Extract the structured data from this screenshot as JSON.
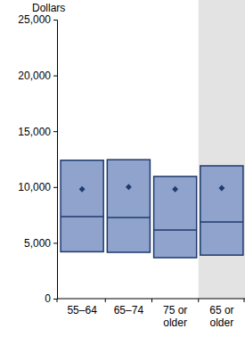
{
  "chart_data": {
    "type": "box",
    "y_label": "Dollars",
    "categories": [
      "55–64",
      "65–74",
      "75 or older",
      "65 or older"
    ],
    "q1": [
      4200,
      4150,
      3670,
      3900
    ],
    "median": [
      7350,
      7270,
      6150,
      6870
    ],
    "q3": [
      12400,
      12450,
      10950,
      11900
    ],
    "mean": [
      9800,
      10000,
      9800,
      9900
    ],
    "color": "#8fa3cc",
    "ylim": [
      0,
      25000
    ],
    "yticks": [
      0,
      {
        "value": 5000,
        "label": "5,000"
      },
      {
        "value": 10000,
        "label": "10,000"
      },
      {
        "value": 15000,
        "label": "15,000"
      },
      {
        "value": 20000,
        "label": "20,000"
      },
      {
        "value": 25000,
        "label": "25,000"
      }
    ],
    "grid": false
  }
}
